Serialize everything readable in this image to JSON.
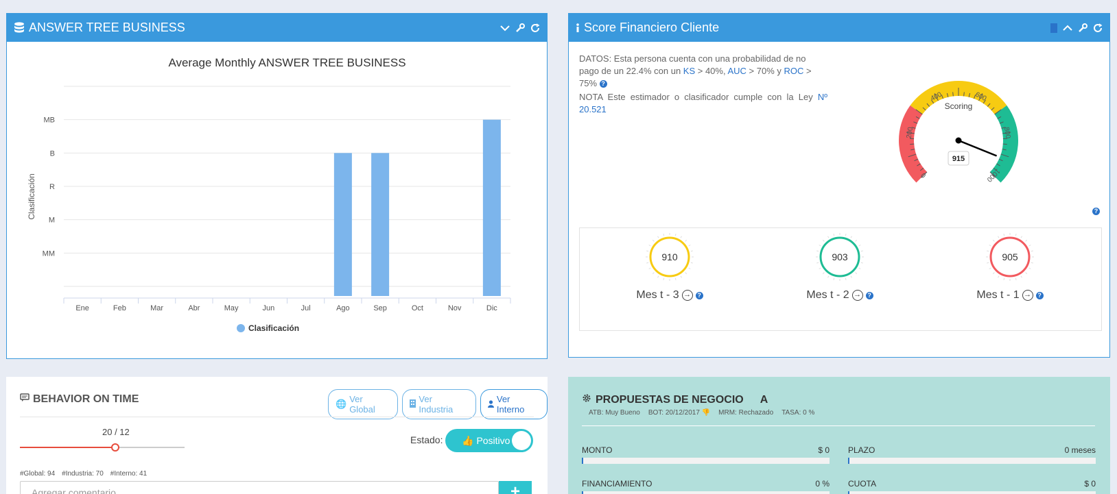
{
  "panel1": {
    "title": "ANSWER TREE BUSINESS",
    "icons": [
      "database-icon",
      "chevron-down-icon",
      "wrench-icon",
      "refresh-icon"
    ]
  },
  "chart_data": {
    "type": "bar",
    "title": "Average Monthly ANSWER TREE BUSINESS",
    "ylabel": "Clasificación",
    "xlabel": "",
    "categories": [
      "Ene",
      "Feb",
      "Mar",
      "Abr",
      "May",
      "Jun",
      "Jul",
      "Ago",
      "Sep",
      "Oct",
      "Nov",
      "Dic"
    ],
    "y_categories": [
      "MM",
      "M",
      "R",
      "B",
      "MB"
    ],
    "series": [
      {
        "name": "Clasificación",
        "values": [
          null,
          null,
          null,
          null,
          null,
          null,
          null,
          "B",
          "B",
          null,
          null,
          "MB"
        ],
        "color": "#7cb5ec"
      }
    ],
    "grid": true,
    "legend": "bottom"
  },
  "panel2": {
    "title": "Score Financiero Cliente",
    "icons": [
      "info-icon",
      "document-icon",
      "chevron-up-icon",
      "wrench-icon",
      "refresh-icon"
    ],
    "datos": {
      "pre": "DATOS: Esta persona cuenta con una probabilidad de no pago de un 22.4% con un ",
      "ks": "KS",
      "ks_val": " > 40%, ",
      "auc": "AUC",
      "auc_val": " > 70% y ",
      "roc": "ROC",
      "roc_val": " > 75% "
    },
    "nota": {
      "pre": "NOTA Este estimador o clasificador cumple con la Ley ",
      "ley": "Nº 20.521"
    },
    "gauge": {
      "label": "Scoring",
      "value": "915",
      "ticks": [
        "0",
        "200",
        "400",
        "600",
        "800",
        "1000"
      ],
      "bands": {
        "red": "#f25a5f",
        "yellow": "#f7cb12",
        "green": "#1ebc94"
      }
    },
    "months": [
      {
        "value": "910",
        "label": "Mes t - 3",
        "color": "#f7cb12"
      },
      {
        "value": "903",
        "label": "Mes t - 2",
        "color": "#1ebc94"
      },
      {
        "value": "905",
        "label": "Mes t - 1",
        "color": "#f25a5f"
      }
    ],
    "help": "?"
  },
  "panel3": {
    "title": "BEHAVIOR ON TIME",
    "buttons": [
      "Ver Global",
      "Ver Industria",
      "Ver Interno"
    ],
    "slider_value": "20 / 12",
    "slider_fraction": 0.58,
    "estado_label": "Estado:",
    "estado_value": "Positivo",
    "counts": [
      "#Global: 94",
      "#Industria: 70",
      "#Interno: 41"
    ],
    "comment_placeholder": "Agregar comentario",
    "add": "+"
  },
  "panel4": {
    "title": "PROPUESTAS DE NEGOCIO",
    "grade": "A",
    "sub": [
      "ATB: Muy Bueno",
      "BOT: 20/12/2017",
      "MRM: Rechazado",
      "TASA: 0 %"
    ],
    "fields": [
      {
        "label": "MONTO",
        "value": "$ 0"
      },
      {
        "label": "PLAZO",
        "value": "0 meses"
      },
      {
        "label": "FINANCIAMIENTO",
        "value": "0 %"
      },
      {
        "label": "CUOTA",
        "value": "$ 0"
      }
    ]
  }
}
